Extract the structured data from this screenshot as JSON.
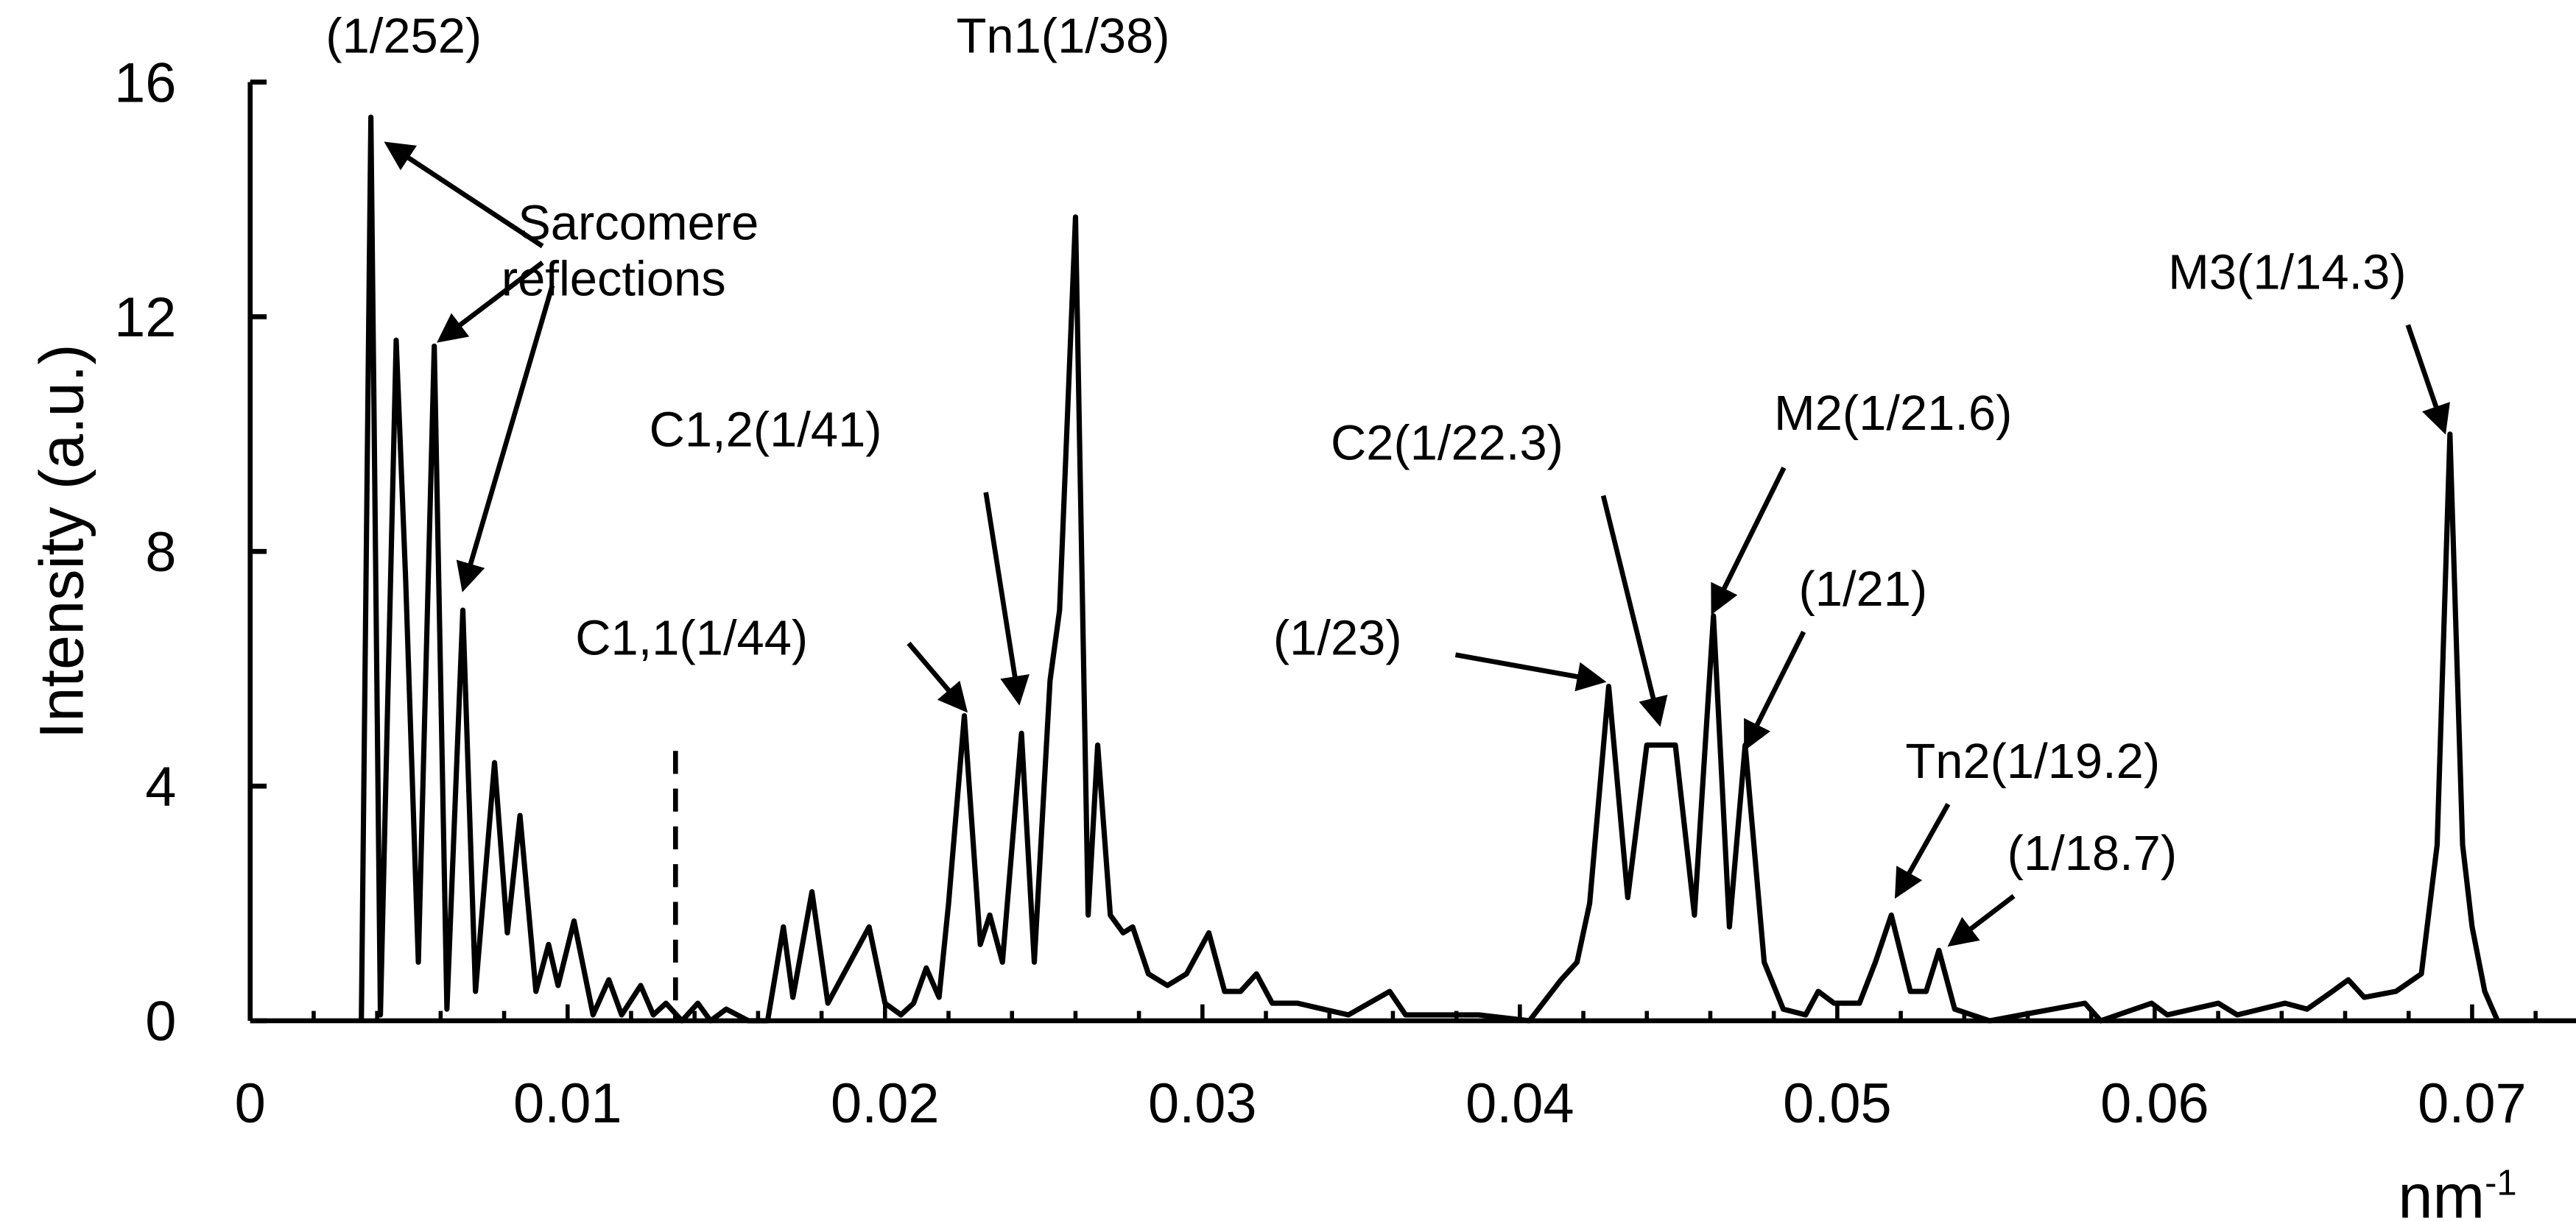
{
  "chart_data": {
    "type": "line",
    "title": "",
    "xlabel": "nm-1",
    "xlabel_base": "nm",
    "xlabel_sup": "-1",
    "ylabel": "Intensity (a.u.)",
    "xlim": [
      0,
      0.074
    ],
    "ylim": [
      0,
      16
    ],
    "x_ticks": [
      0,
      0.01,
      0.02,
      0.03,
      0.04,
      0.05,
      0.06,
      0.07
    ],
    "x_tick_labels": [
      "0",
      "0.01",
      "0.02",
      "0.03",
      "0.04",
      "0.05",
      "0.06",
      "0.07"
    ],
    "y_ticks": [
      0,
      4,
      8,
      12,
      16
    ],
    "y_tick_labels": [
      "0",
      "4",
      "8",
      "12",
      "16"
    ],
    "grid": false,
    "line_color": "#000000",
    "dashed_marker": {
      "x": 0.0134,
      "y_top": 4.6
    },
    "series": [
      {
        "x": [
          0.0035,
          0.0038,
          0.0041,
          0.0046,
          0.0049,
          0.0053,
          0.0058,
          0.0062,
          0.0067,
          0.0071,
          0.0077,
          0.0081,
          0.0085,
          0.009,
          0.0094,
          0.0097,
          0.0102,
          0.0108,
          0.0113,
          0.0117,
          0.0123,
          0.0127,
          0.0131,
          0.0136,
          0.0141,
          0.0145,
          0.015,
          0.0157,
          0.0163,
          0.0168,
          0.0171,
          0.0177,
          0.0182,
          0.0188,
          0.0195,
          0.02,
          0.0205,
          0.0209,
          0.0213,
          0.0217,
          0.022,
          0.0225,
          0.023,
          0.0233,
          0.0237,
          0.0243,
          0.0247,
          0.0252,
          0.0255,
          0.026,
          0.0264,
          0.0267,
          0.0271,
          0.0275,
          0.0278,
          0.0283,
          0.0289,
          0.0295,
          0.0302,
          0.0307,
          0.0312,
          0.0317,
          0.0322,
          0.033,
          0.0338,
          0.0346,
          0.0359,
          0.0364,
          0.0387,
          0.0403,
          0.0413,
          0.0418,
          0.0422,
          0.0428,
          0.0434,
          0.044,
          0.0449,
          0.0455,
          0.0461,
          0.0466,
          0.0471,
          0.0477,
          0.0483,
          0.049,
          0.0494,
          0.0499,
          0.0507,
          0.0512,
          0.0517,
          0.0523,
          0.0528,
          0.0532,
          0.0537,
          0.0548,
          0.0558,
          0.0578,
          0.0583,
          0.0599,
          0.0604,
          0.062,
          0.0626,
          0.0641,
          0.0648,
          0.0656,
          0.0661,
          0.0666,
          0.0676,
          0.0684,
          0.0689,
          0.0693,
          0.0697,
          0.07,
          0.0704,
          0.0708
        ],
        "y": [
          0,
          15.4,
          0.1,
          11.6,
          7.5,
          1.0,
          11.5,
          0.2,
          7.0,
          0.5,
          4.4,
          1.5,
          3.5,
          0.5,
          1.3,
          0.6,
          1.7,
          0.1,
          0.7,
          0.1,
          0.6,
          0.1,
          0.3,
          0.0,
          0.3,
          0.0,
          0.2,
          0.0,
          0.0,
          1.6,
          0.4,
          2.2,
          0.3,
          0.9,
          1.6,
          0.3,
          0.1,
          0.3,
          0.9,
          0.4,
          2.0,
          5.2,
          1.3,
          1.8,
          1.0,
          4.9,
          1.0,
          5.8,
          7.0,
          13.7,
          1.8,
          4.7,
          1.8,
          1.5,
          1.6,
          0.8,
          0.6,
          0.8,
          1.5,
          0.5,
          0.5,
          0.8,
          0.3,
          0.3,
          0.2,
          0.1,
          0.5,
          0.1,
          0.1,
          0.0,
          0.7,
          1.0,
          2.0,
          5.7,
          2.1,
          4.7,
          4.7,
          1.8,
          6.9,
          1.6,
          4.7,
          1.0,
          0.2,
          0.1,
          0.5,
          0.3,
          0.3,
          1.0,
          1.8,
          0.5,
          0.5,
          1.2,
          0.2,
          0.0,
          0.1,
          0.3,
          0.0,
          0.3,
          0.1,
          0.3,
          0.1,
          0.3,
          0.2,
          0.5,
          0.7,
          0.4,
          0.5,
          0.8,
          3.0,
          10.0,
          3.0,
          1.6,
          0.5,
          0.0
        ]
      }
    ],
    "annotations": [
      {
        "id": "a252",
        "text": "(1/252)"
      },
      {
        "id": "sarc1",
        "text": "Sarcomere"
      },
      {
        "id": "sarc2",
        "text": "reflections"
      },
      {
        "id": "tn1",
        "text": "Tn1(1/38)"
      },
      {
        "id": "m3",
        "text": "M3(1/14.3)"
      },
      {
        "id": "c12",
        "text": "C1,2(1/41)"
      },
      {
        "id": "c11",
        "text": "C1,1(1/44)"
      },
      {
        "id": "c2",
        "text": "C2(1/22.3)"
      },
      {
        "id": "m2",
        "text": "M2(1/21.6)"
      },
      {
        "id": "a21",
        "text": "(1/21)"
      },
      {
        "id": "a23",
        "text": "(1/23)"
      },
      {
        "id": "tn2",
        "text": "Tn2(1/19.2)"
      },
      {
        "id": "a187",
        "text": "(1/18.7)"
      }
    ]
  }
}
